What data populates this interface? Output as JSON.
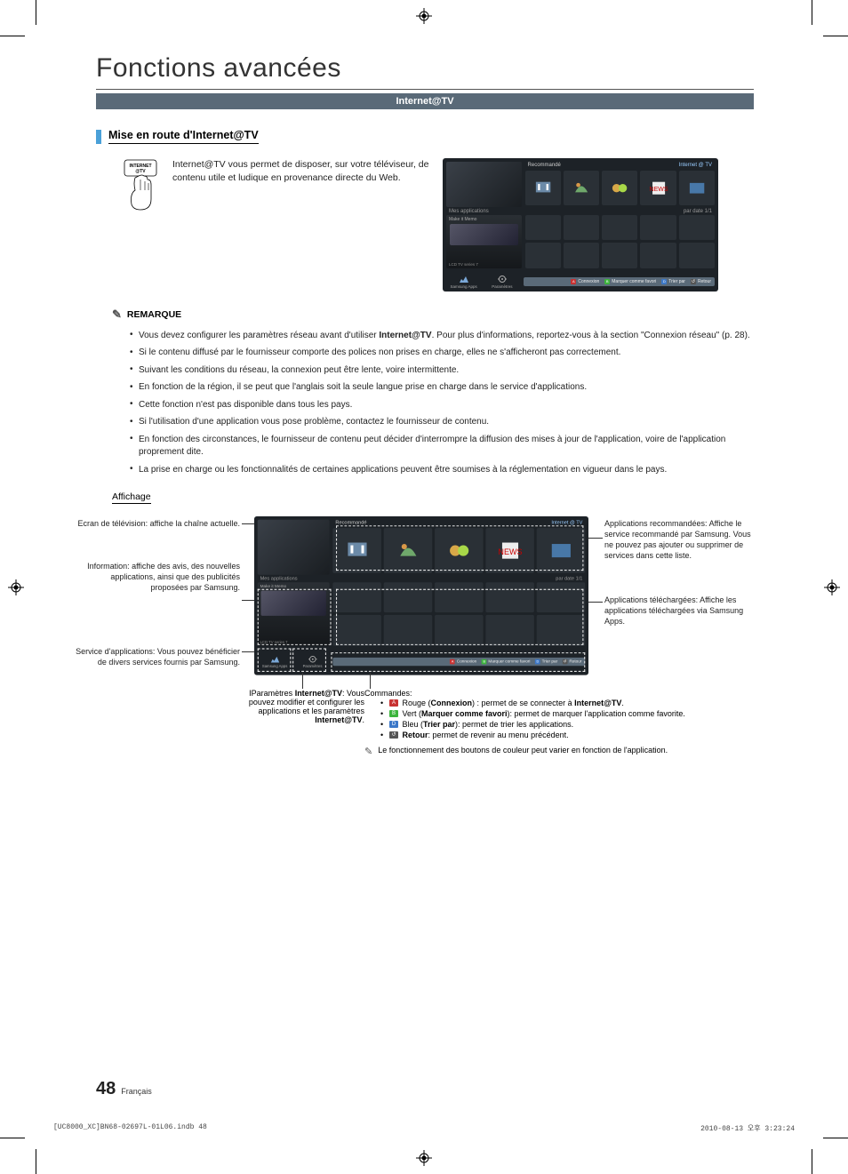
{
  "page": {
    "title": "Fonctions avancées",
    "section_bar": "Internet@TV",
    "subhead": "Mise en route d'Internet@TV",
    "intro": "Internet@TV vous permet de disposer, sur votre téléviseur, de contenu utile et ludique en provenance directe du Web.",
    "remote_label_top": "INTERNET",
    "remote_label_bot": "@TV",
    "page_number": "48",
    "page_lang": "Français"
  },
  "tv": {
    "reco_label": "Recommandé",
    "brand": "Internet @ TV",
    "apps_label": "Mes applications",
    "page_indicator": "par date 1/1",
    "bot_icons": [
      "Samsung Apps",
      "Paramètres"
    ],
    "bot_bar": [
      {
        "color": "#c83232",
        "glyph": "A",
        "text": "Connexion"
      },
      {
        "color": "#3cb43c",
        "glyph": "B",
        "text": "Marquer comme favori"
      },
      {
        "color": "#3c78c8",
        "glyph": "D",
        "text": "Trier par"
      },
      {
        "color": "#555555",
        "glyph": "↺",
        "text": "Retour"
      }
    ],
    "info_caption": "Make it Memo",
    "info_sub": "LCD TV series 7"
  },
  "remark": {
    "heading": "REMARQUE",
    "items": [
      {
        "pre": "Vous devez configurer les paramètres réseau avant d'utiliser ",
        "bold": "Internet@TV",
        "post": ". Pour plus d'informations, reportez-vous à la section \"Connexion réseau\" (p. 28)."
      },
      {
        "pre": "Si le contenu diffusé par le fournisseur comporte des polices non prises en charge, elles ne s'afficheront pas correctement.",
        "bold": "",
        "post": ""
      },
      {
        "pre": "Suivant les conditions du réseau, la connexion peut être lente, voire intermittente.",
        "bold": "",
        "post": ""
      },
      {
        "pre": "En fonction de la région, il se peut que l'anglais soit la seule langue prise en charge dans le service d'applications.",
        "bold": "",
        "post": ""
      },
      {
        "pre": "Cette fonction n'est pas disponible dans tous les pays.",
        "bold": "",
        "post": ""
      },
      {
        "pre": "Si l'utilisation d'une application vous pose problème, contactez le fournisseur de contenu.",
        "bold": "",
        "post": ""
      },
      {
        "pre": "En fonction des circonstances, le fournisseur de contenu peut décider d'interrompre la diffusion des mises à jour de l'application, voire de l'application proprement dite.",
        "bold": "",
        "post": ""
      },
      {
        "pre": "La prise en charge ou les fonctionnalités de certaines applications peuvent être soumises à la réglementation en vigueur dans le pays.",
        "bold": "",
        "post": ""
      }
    ]
  },
  "affichage": {
    "heading": "Affichage",
    "callouts": {
      "tv_screen": "Ecran de télévision: affiche la chaîne actuelle.",
      "information": "Information: affiche des avis, des nouvelles applications, ainsi que des publicités proposées par Samsung.",
      "service": "Service d'applications: Vous pouvez bénéficier de divers services fournis par Samsung.",
      "reco_apps": "Applications recommandées: Affiche le service recommandé par Samsung. Vous ne pouvez pas ajouter ou supprimer de services dans cette liste.",
      "dl_apps": "Applications téléchargées: Affiche les applications téléchargées via Samsung Apps."
    },
    "params": {
      "title": "IParamètres ",
      "title_bold": "Internet@TV",
      "body": ": Vous pouvez modifier et configurer les applications et les paramètres ",
      "body_bold": "Internet@TV",
      "body_end": "."
    },
    "commands": {
      "heading": "Commandes:",
      "items": [
        {
          "chip_color": "#c83232",
          "chip_glyph": "A",
          "pre": " Rouge (",
          "bold": "Connexion",
          "post": ") : permet de se connecter à ",
          "tail_bold": "Internet@TV",
          "tail": "."
        },
        {
          "chip_color": "#3cb43c",
          "chip_glyph": "B",
          "pre": " Vert (",
          "bold": "Marquer comme favori",
          "post": "): permet de marquer l'application comme favorite.",
          "tail_bold": "",
          "tail": ""
        },
        {
          "chip_color": "#3c78c8",
          "chip_glyph": "D",
          "pre": " Bleu (",
          "bold": "Trier par",
          "post": "): permet de trier les applications.",
          "tail_bold": "",
          "tail": ""
        },
        {
          "chip_color": "#555555",
          "chip_glyph": "↺",
          "pre": " ",
          "bold": "Retour",
          "post": ": permet de revenir au menu précédent.",
          "tail_bold": "",
          "tail": ""
        }
      ],
      "note": "Le fonctionnement des boutons de couleur peut varier en fonction de l'application."
    }
  },
  "print": {
    "left": "[UC8000_XC]BN68-02697L-01L06.indb   48",
    "right": "2010-08-13   오후 3:23:24"
  },
  "colors": {
    "section_bar_bg": "#5a6a78",
    "blue_tick": "#4aa0d8",
    "panel_bg": "#1d2227",
    "cell_bg": "#2a3036"
  }
}
